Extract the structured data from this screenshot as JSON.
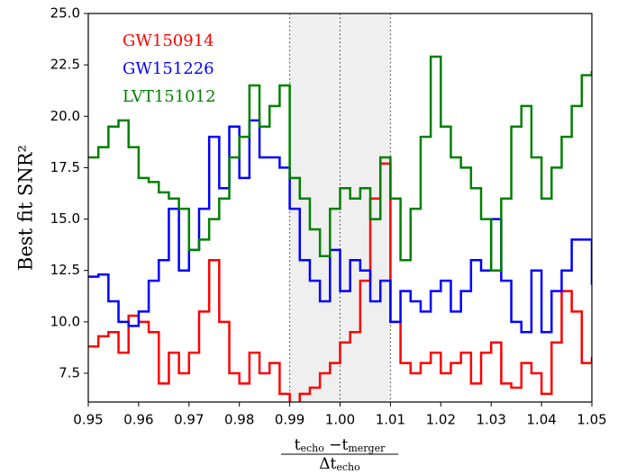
{
  "chart_data": {
    "type": "step",
    "ylabel": "Best fit SNR²",
    "xlabel": {
      "numerator": [
        "t",
        "echo",
        " −t",
        "merger"
      ],
      "denominator": [
        "Δt",
        "echo"
      ]
    },
    "xlim": [
      0.95,
      1.05
    ],
    "ylim": [
      6.1,
      25
    ],
    "xticks": [
      0.95,
      0.96,
      0.97,
      0.98,
      0.99,
      {
        "value": 1.0,
        "label": "1.00"
      },
      1.01,
      1.02,
      1.03,
      1.04,
      1.05
    ],
    "yticks": [
      7.5,
      {
        "value": 10,
        "label": "10.0"
      },
      12.5,
      {
        "value": 15,
        "label": "15.0"
      },
      17.5,
      {
        "value": 20,
        "label": "20.0"
      },
      22.5,
      {
        "value": 25,
        "label": "25.0"
      }
    ],
    "shade": [
      0.99,
      1.01
    ],
    "vlines": [
      0.99,
      1.0,
      1.01
    ],
    "legend": "upper left",
    "x": [
      0.95,
      0.952,
      0.954,
      0.956,
      0.958,
      0.96,
      0.962,
      0.964,
      0.966,
      0.968,
      0.97,
      0.972,
      0.974,
      0.976,
      0.978,
      0.98,
      0.982,
      0.984,
      0.986,
      0.988,
      0.99,
      0.992,
      0.994,
      0.996,
      0.998,
      1.0,
      1.002,
      1.004,
      1.006,
      1.008,
      1.01,
      1.012,
      1.014,
      1.016,
      1.018,
      1.02,
      1.022,
      1.024,
      1.026,
      1.028,
      1.03,
      1.032,
      1.034,
      1.036,
      1.038,
      1.04,
      1.042,
      1.044,
      1.046,
      1.048,
      1.05
    ],
    "series": [
      {
        "name": "GW150914",
        "color": "#ff0000",
        "values": [
          8.8,
          9.3,
          9.5,
          8.5,
          10.3,
          10.0,
          9.5,
          7.0,
          8.5,
          7.5,
          8.5,
          10.5,
          13.0,
          10.0,
          7.5,
          7.0,
          8.5,
          7.5,
          8.0,
          6.5,
          5.8,
          6.5,
          6.8,
          7.5,
          8.0,
          9.0,
          9.5,
          12.0,
          16.0,
          17.7,
          10.0,
          8.0,
          7.5,
          8.0,
          8.5,
          7.5,
          8.0,
          8.5,
          7.0,
          8.5,
          9.0,
          7.0,
          6.8,
          8.0,
          7.5,
          6.5,
          9.0,
          11.5,
          10.5,
          8.0,
          8.3
        ]
      },
      {
        "name": "GW151226",
        "color": "#0000ff",
        "values": [
          12.2,
          12.3,
          11.0,
          10.0,
          9.8,
          10.5,
          12.0,
          13.0,
          15.5,
          12.5,
          13.5,
          15.5,
          19.0,
          16.5,
          19.5,
          17.0,
          19.8,
          18.0,
          18.0,
          17.5,
          15.5,
          13.0,
          12.0,
          11.0,
          13.5,
          11.5,
          13.0,
          12.5,
          11.0,
          12.0,
          10.0,
          11.5,
          11.0,
          10.5,
          11.5,
          12.0,
          10.5,
          11.5,
          13.0,
          12.5,
          15.0,
          12.0,
          10.0,
          9.5,
          12.5,
          9.5,
          11.5,
          12.5,
          14.0,
          14.0,
          11.8
        ]
      },
      {
        "name": "LVT151012",
        "color": "#008000",
        "values": [
          18.0,
          18.5,
          19.5,
          19.8,
          18.5,
          17.0,
          16.8,
          16.3,
          16.0,
          15.5,
          13.5,
          14.0,
          15.0,
          16.0,
          18.0,
          19.0,
          21.5,
          19.5,
          20.5,
          21.5,
          17.0,
          16.0,
          14.5,
          13.2,
          15.5,
          16.5,
          16.0,
          16.5,
          15.0,
          18.0,
          16.0,
          13.0,
          15.5,
          19.0,
          22.9,
          19.5,
          18.0,
          17.5,
          16.5,
          15.0,
          12.5,
          16.0,
          19.5,
          20.5,
          18.0,
          16.0,
          17.5,
          19.0,
          20.5,
          22.0,
          22.2
        ]
      }
    ]
  }
}
